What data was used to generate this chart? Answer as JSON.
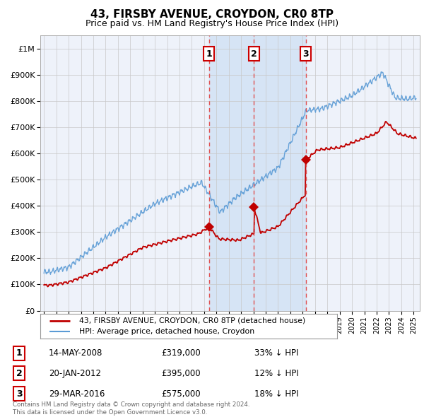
{
  "title": "43, FIRSBY AVENUE, CROYDON, CR0 8TP",
  "subtitle": "Price paid vs. HM Land Registry's House Price Index (HPI)",
  "legend_line1": "43, FIRSBY AVENUE, CROYDON, CR0 8TP (detached house)",
  "legend_line2": "HPI: Average price, detached house, Croydon",
  "footer1": "Contains HM Land Registry data © Crown copyright and database right 2024.",
  "footer2": "This data is licensed under the Open Government Licence v3.0.",
  "transactions": [
    {
      "num": 1,
      "date": "14-MAY-2008",
      "price": 319000,
      "price_str": "£319,000",
      "pct": "33%",
      "dir": "↓",
      "year": 2008.38
    },
    {
      "num": 2,
      "date": "20-JAN-2012",
      "price": 395000,
      "price_str": "£395,000",
      "pct": "12%",
      "dir": "↓",
      "year": 2012.05
    },
    {
      "num": 3,
      "date": "29-MAR-2016",
      "price": 575000,
      "price_str": "£575,000",
      "pct": "18%",
      "dir": "↓",
      "year": 2016.24
    }
  ],
  "hpi_color": "#5b9bd5",
  "price_color": "#c00000",
  "bg_color": "#ffffff",
  "chart_bg": "#eef2fa",
  "grid_color": "#c8c8c8",
  "highlight_bg": "#d6e4f5",
  "dashed_color": "#e05050",
  "ylim": [
    0,
    1050000
  ],
  "xlim_start": 1994.7,
  "xlim_end": 2025.5,
  "yticks": [
    0,
    100000,
    200000,
    300000,
    400000,
    500000,
    600000,
    700000,
    800000,
    900000,
    1000000
  ]
}
